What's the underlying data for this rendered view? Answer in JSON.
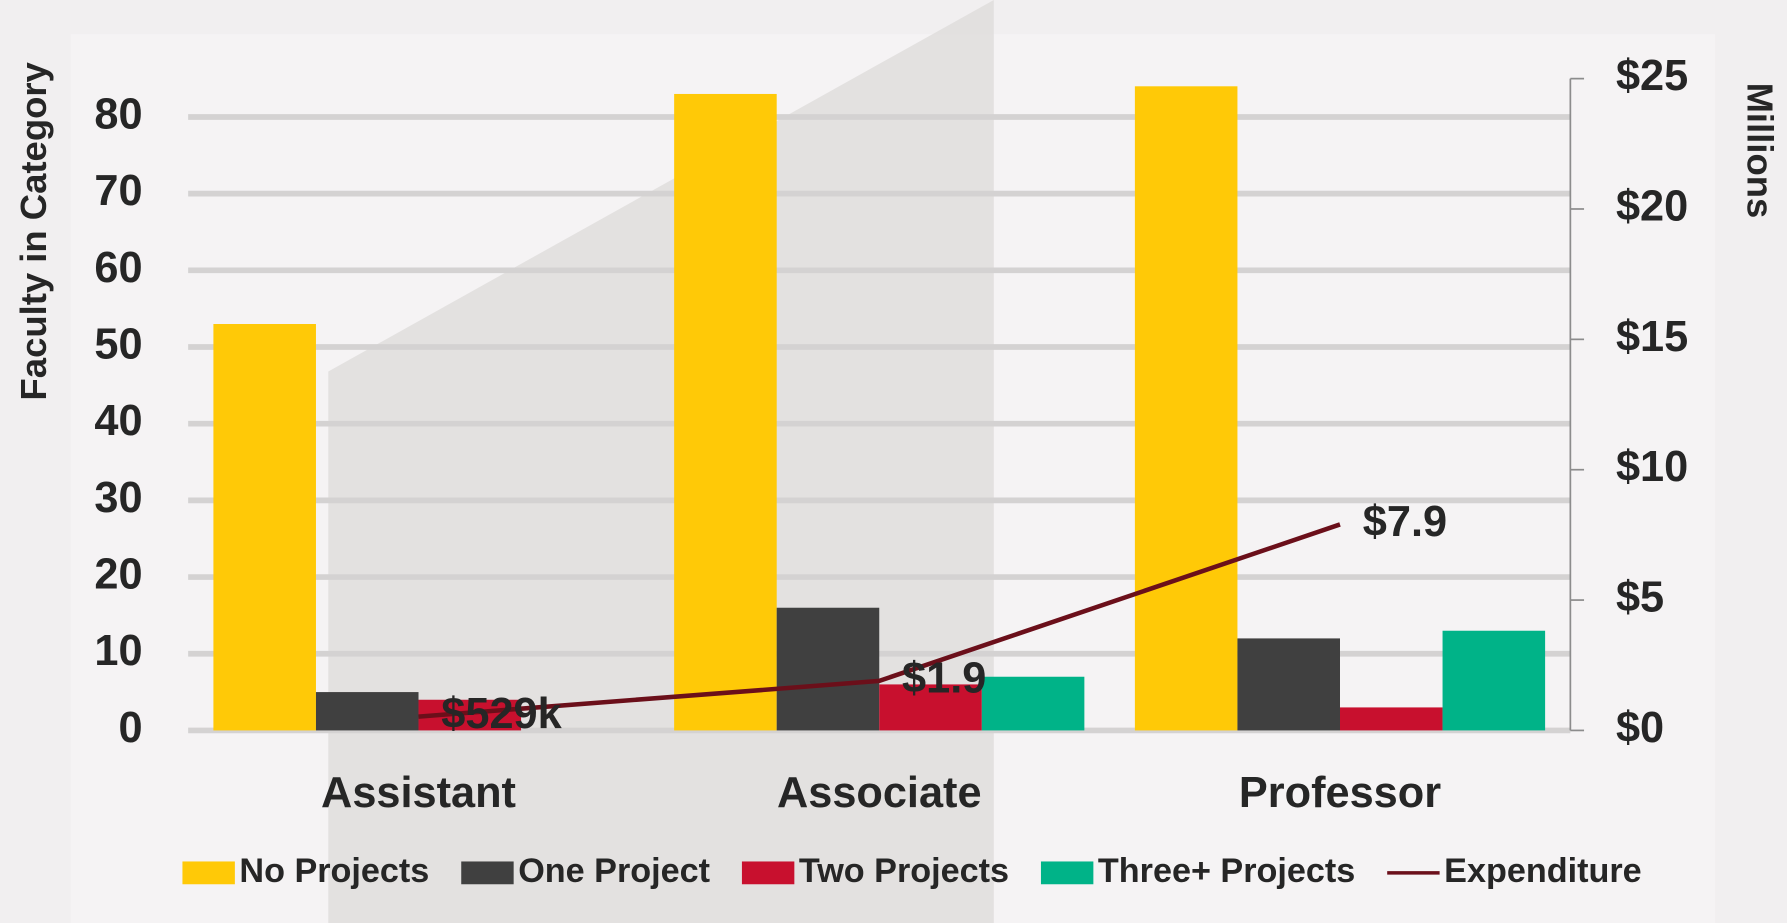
{
  "chart_data": {
    "type": "bar",
    "categories": [
      "Assistant",
      "Associate",
      "Professor"
    ],
    "series": [
      {
        "name": "No Projects",
        "color": "#ffc907",
        "values": [
          53,
          83,
          84
        ]
      },
      {
        "name": "One Project",
        "color": "#404040",
        "values": [
          5,
          16,
          12
        ]
      },
      {
        "name": "Two Projects",
        "color": "#c8102e",
        "values": [
          4,
          6,
          3
        ]
      },
      {
        "name": "Three+ Projects",
        "color": "#00b388",
        "values": [
          0,
          7,
          13
        ]
      },
      {
        "name": "Expenditure",
        "type": "line",
        "axis": "y2",
        "color": "#6b0f1a",
        "values": [
          0.529,
          1.9,
          7.9
        ],
        "value_labels": [
          "$529k",
          "$1.9",
          "$7.9"
        ]
      }
    ],
    "y_label": "Faculty in Category",
    "y2_label": "Millions",
    "ylim": [
      0,
      85
    ],
    "yticks": [
      0,
      10,
      20,
      30,
      40,
      50,
      60,
      70,
      80
    ],
    "y2lim": [
      0,
      25
    ],
    "y2ticks": [
      {
        "value": 0,
        "label": "$0"
      },
      {
        "value": 5,
        "label": "$5"
      },
      {
        "value": 10,
        "label": "$10"
      },
      {
        "value": 15,
        "label": "$15"
      },
      {
        "value": 20,
        "label": "$20"
      },
      {
        "value": 25,
        "label": "$25"
      }
    ],
    "grid": true,
    "legend": "bottom"
  }
}
